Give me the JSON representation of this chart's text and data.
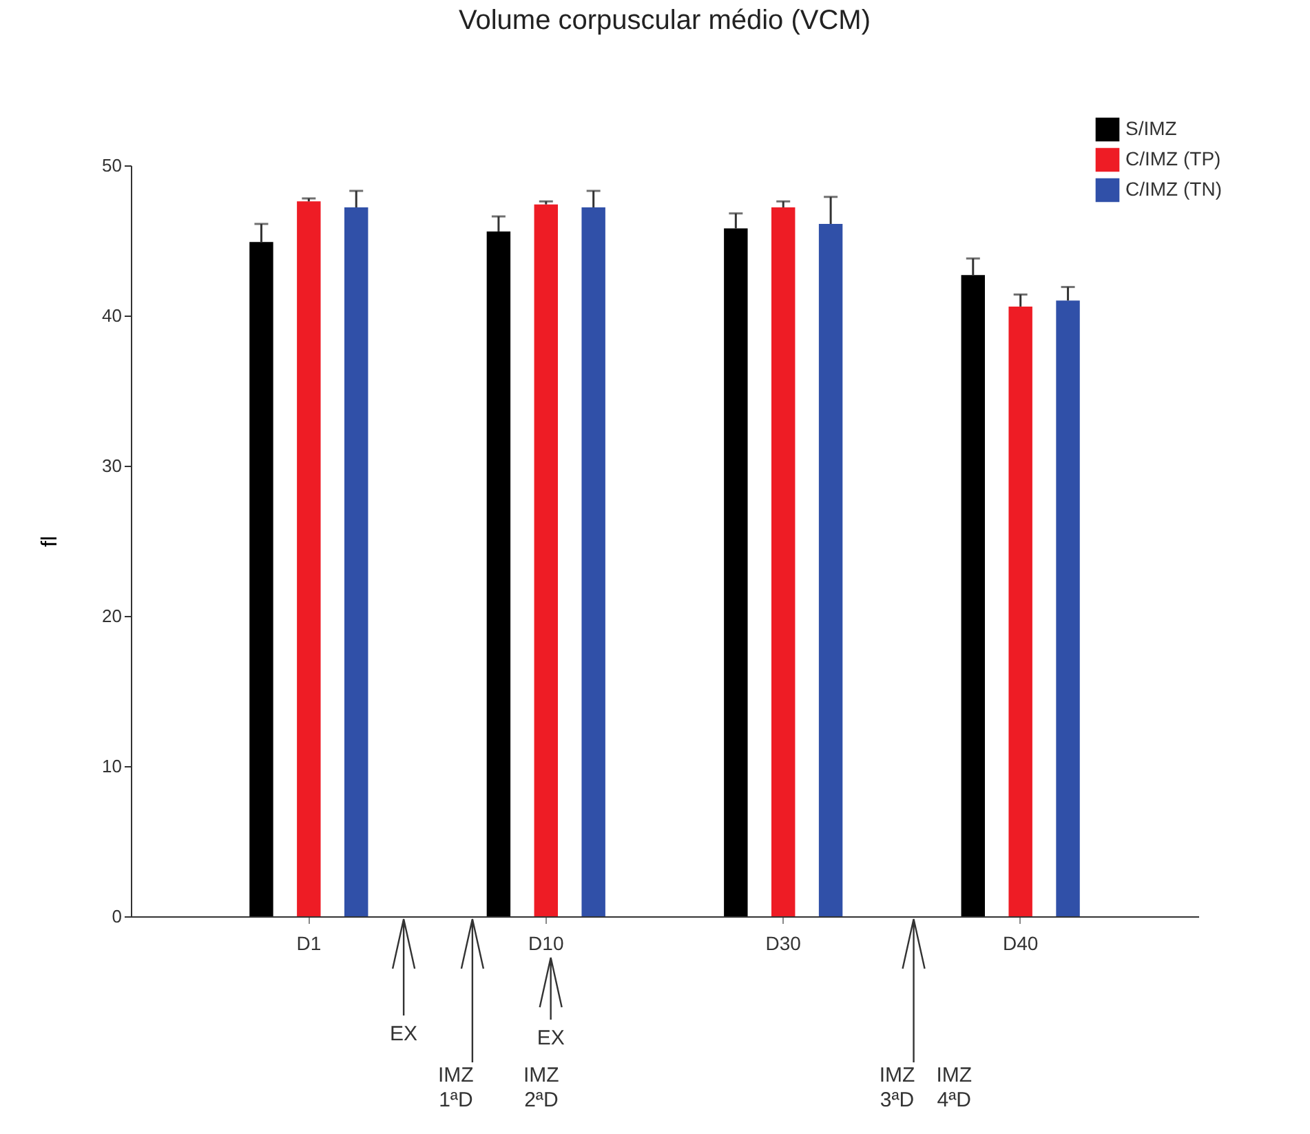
{
  "chart_data": {
    "type": "bar",
    "title": "Volume corpuscular médio (VCM)",
    "ylabel": "fl",
    "categories": [
      "D1",
      "D10",
      "D30",
      "D40"
    ],
    "series": [
      {
        "name": "S/IMZ",
        "color": "#000000",
        "values": [
          44.9,
          45.6,
          45.8,
          42.7
        ],
        "errors": [
          1.2,
          1.0,
          1.0,
          1.1
        ]
      },
      {
        "name": "C/IMZ (TP)",
        "color": "#ee1c25",
        "values": [
          47.6,
          47.4,
          47.2,
          40.6
        ],
        "errors": [
          0.2,
          0.2,
          0.4,
          0.8
        ]
      },
      {
        "name": "C/IMZ (TN)",
        "color": "#3050a8",
        "values": [
          47.2,
          47.2,
          46.1,
          41.0
        ],
        "errors": [
          1.1,
          1.1,
          1.8,
          0.9
        ]
      }
    ],
    "ylim": [
      0,
      50
    ],
    "yticks": [
      0,
      10,
      20,
      30,
      40,
      50
    ],
    "grid": false,
    "legend": "top right",
    "annotations": [
      "EX",
      "IMZ 1ªD",
      "IMZ 2ªD",
      "EX",
      "IMZ 3ªD",
      "IMZ 4ªD"
    ]
  }
}
